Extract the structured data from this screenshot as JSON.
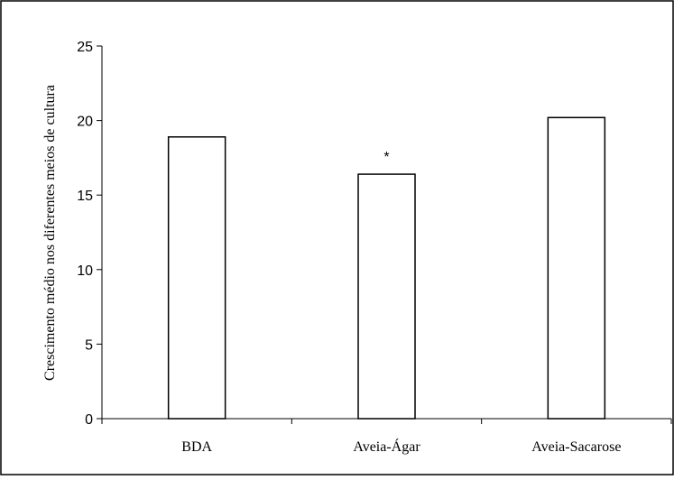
{
  "chart_data": {
    "type": "bar",
    "categories": [
      "BDA",
      "Aveia-Ágar",
      "Aveia-Sacarose"
    ],
    "values": [
      18.9,
      16.4,
      20.2
    ],
    "annotations": [
      {
        "category": "Aveia-Ágar",
        "text": "*"
      }
    ],
    "title": "",
    "xlabel": "",
    "ylabel": "Crescimento médio nos diferentes meios de cultura",
    "ylim": [
      0,
      25
    ],
    "yticks": [
      0,
      5,
      10,
      15,
      20,
      25
    ],
    "grid": false,
    "legend": "none",
    "bar_fill": "#ffffff",
    "bar_stroke": "#000000"
  }
}
